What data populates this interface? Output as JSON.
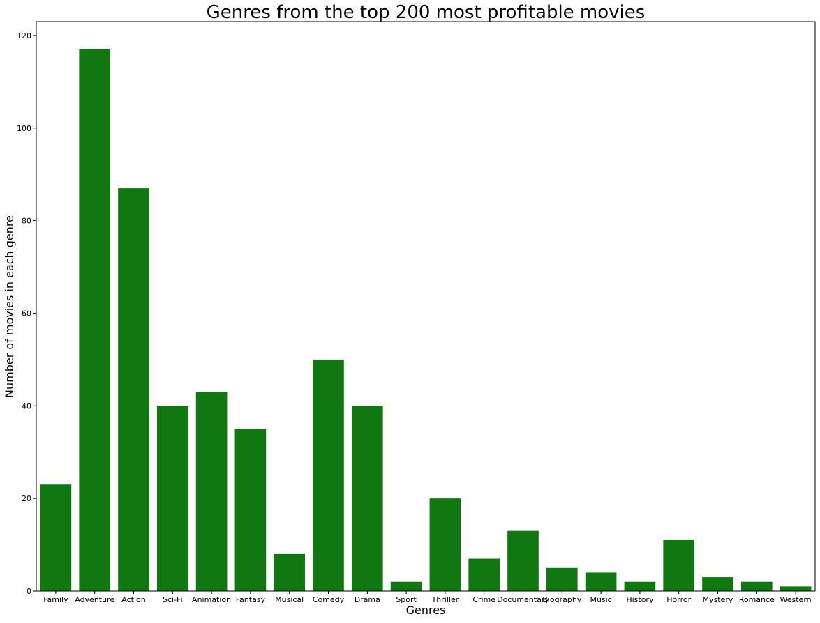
{
  "chart_data": {
    "type": "bar",
    "title": "Genres from the top 200 most profitable movies",
    "xlabel": "Genres",
    "ylabel": "Number of movies in each genre",
    "categories": [
      "Family",
      "Adventure",
      "Action",
      "Sci-Fi",
      "Animation",
      "Fantasy",
      "Musical",
      "Comedy",
      "Drama",
      "Sport",
      "Thriller",
      "Crime",
      "Documentary",
      "Biography",
      "Music",
      "History",
      "Horror",
      "Mystery",
      "Romance",
      "Western"
    ],
    "values": [
      23,
      117,
      87,
      40,
      43,
      35,
      8,
      50,
      40,
      2,
      20,
      7,
      13,
      5,
      4,
      2,
      11,
      3,
      2,
      1
    ],
    "ylim": [
      0,
      123
    ],
    "yticks": [
      0,
      20,
      40,
      60,
      80,
      100,
      120
    ],
    "bar_color": "#117711",
    "grid": false,
    "legend": "none"
  }
}
